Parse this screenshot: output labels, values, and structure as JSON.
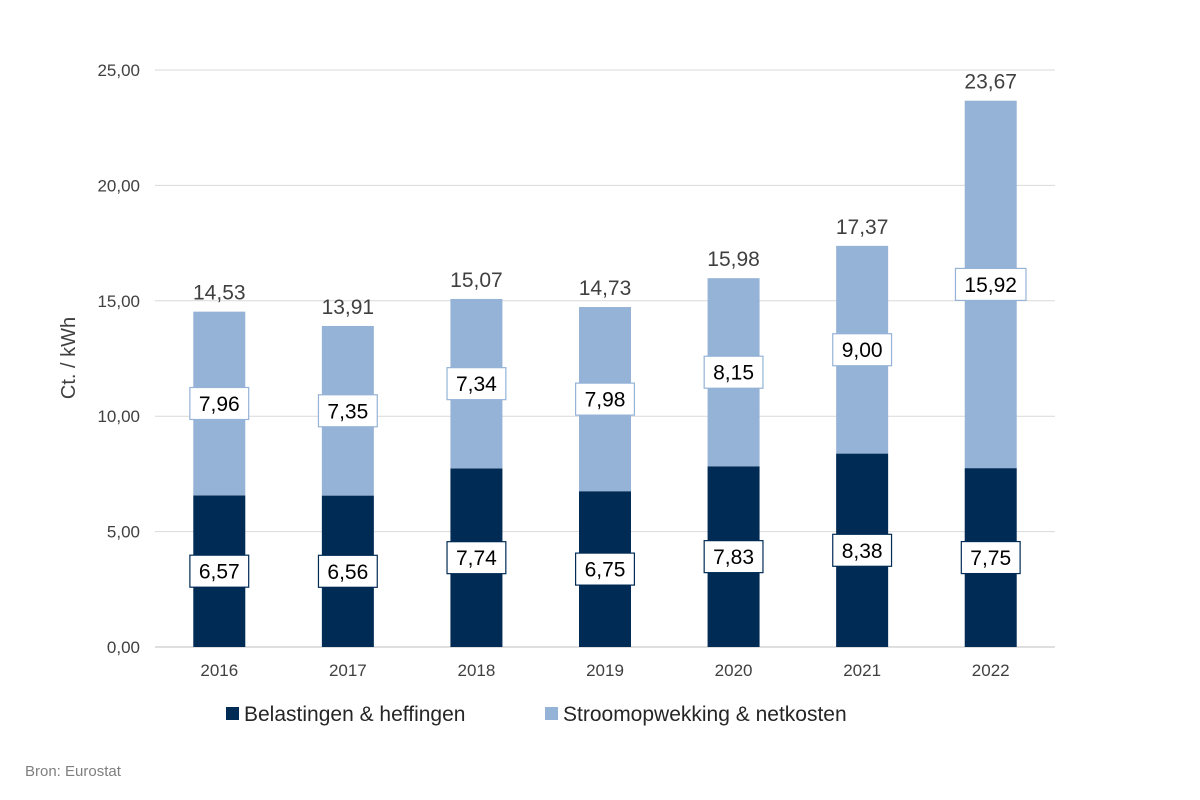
{
  "chart_data": {
    "type": "bar",
    "stacked": true,
    "categories": [
      "2016",
      "2017",
      "2018",
      "2019",
      "2020",
      "2021",
      "2022"
    ],
    "series": [
      {
        "name": "Belastingen & heffingen",
        "color": "#002b55",
        "values": [
          6.57,
          6.56,
          7.74,
          6.75,
          7.83,
          8.38,
          7.75
        ],
        "labels": [
          "6,57",
          "6,56",
          "7,74",
          "6,75",
          "7,83",
          "8,38",
          "7,75"
        ]
      },
      {
        "name": "Stroomopwekking & netkosten",
        "color": "#95b3d7",
        "values": [
          7.96,
          7.35,
          7.34,
          7.98,
          8.15,
          9.0,
          15.92
        ],
        "labels": [
          "7,96",
          "7,35",
          "7,34",
          "7,98",
          "8,15",
          "9,00",
          "15,92"
        ]
      }
    ],
    "totals": [
      14.53,
      13.91,
      15.07,
      14.73,
      15.98,
      17.37,
      23.67
    ],
    "total_labels": [
      "14,53",
      "13,91",
      "15,07",
      "14,73",
      "15,98",
      "17,37",
      "23,67"
    ],
    "ylabel": "Ct. / kWh",
    "xlabel": "",
    "ylim": [
      0,
      25
    ],
    "yticks": [
      0,
      5,
      10,
      15,
      20,
      25
    ],
    "ytick_labels": [
      "0,00",
      "5,00",
      "10,00",
      "15,00",
      "20,00",
      "25,00"
    ],
    "grid": true,
    "legend_position": "bottom"
  },
  "source_note": "Bron: Eurostat"
}
